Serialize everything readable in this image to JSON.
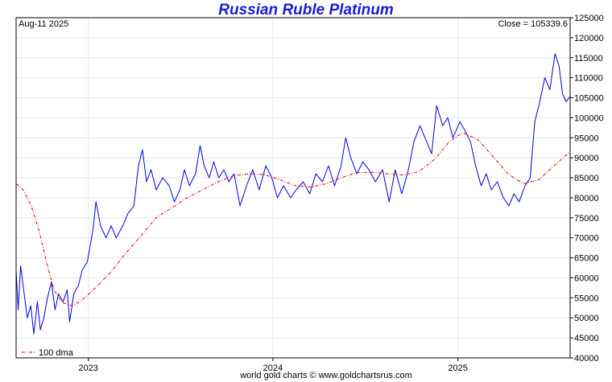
{
  "chart_data": {
    "type": "line",
    "title": "Russian Ruble Platinum",
    "date_label": "Aug-11  2025",
    "close_label": "Close = 105339.6",
    "footer": "world gold charts © www.goldchartsrus.com",
    "legend": [
      {
        "label": "100 dma",
        "color": "#e00000",
        "style": "dash-dot"
      }
    ],
    "legend_placement": "bottom-left",
    "grid": true,
    "ylim": [
      40000,
      125000
    ],
    "yticks": [
      40000,
      45000,
      50000,
      55000,
      60000,
      65000,
      70000,
      75000,
      80000,
      85000,
      90000,
      95000,
      100000,
      105000,
      110000,
      115000,
      120000,
      125000
    ],
    "xlim": [
      "2022-08-11",
      "2025-08-11"
    ],
    "xticks": [
      {
        "label": "2023",
        "date": "2023-01-01"
      },
      {
        "label": "2024",
        "date": "2024-01-01"
      },
      {
        "label": "2025",
        "date": "2025-01-01"
      }
    ],
    "series": [
      {
        "name": "Platinum",
        "color": "#0000e0",
        "points": [
          [
            "2022-08-11",
            62000
          ],
          [
            "2022-08-15",
            52000
          ],
          [
            "2022-08-20",
            63000
          ],
          [
            "2022-08-26",
            57000
          ],
          [
            "2022-09-02",
            50000
          ],
          [
            "2022-09-09",
            53000
          ],
          [
            "2022-09-15",
            46000
          ],
          [
            "2022-09-22",
            54000
          ],
          [
            "2022-09-28",
            47000
          ],
          [
            "2022-10-05",
            50000
          ],
          [
            "2022-10-12",
            55000
          ],
          [
            "2022-10-20",
            59000
          ],
          [
            "2022-10-27",
            52000
          ],
          [
            "2022-11-03",
            56000
          ],
          [
            "2022-11-12",
            54000
          ],
          [
            "2022-11-20",
            57000
          ],
          [
            "2022-11-25",
            49000
          ],
          [
            "2022-12-03",
            56000
          ],
          [
            "2022-12-12",
            58000
          ],
          [
            "2022-12-20",
            62000
          ],
          [
            "2022-12-30",
            64000
          ],
          [
            "2023-01-10",
            72000
          ],
          [
            "2023-01-16",
            79000
          ],
          [
            "2023-01-25",
            73000
          ],
          [
            "2023-02-05",
            70000
          ],
          [
            "2023-02-15",
            73000
          ],
          [
            "2023-02-25",
            70000
          ],
          [
            "2023-03-10",
            73000
          ],
          [
            "2023-03-20",
            76000
          ],
          [
            "2023-04-01",
            78000
          ],
          [
            "2023-04-10",
            88000
          ],
          [
            "2023-04-18",
            92000
          ],
          [
            "2023-04-26",
            84000
          ],
          [
            "2023-05-05",
            87000
          ],
          [
            "2023-05-15",
            82000
          ],
          [
            "2023-05-28",
            85000
          ],
          [
            "2023-06-10",
            83000
          ],
          [
            "2023-06-20",
            79000
          ],
          [
            "2023-07-01",
            82000
          ],
          [
            "2023-07-10",
            87000
          ],
          [
            "2023-07-20",
            83000
          ],
          [
            "2023-08-01",
            86000
          ],
          [
            "2023-08-10",
            93000
          ],
          [
            "2023-08-18",
            88000
          ],
          [
            "2023-08-28",
            85000
          ],
          [
            "2023-09-06",
            89000
          ],
          [
            "2023-09-16",
            85000
          ],
          [
            "2023-09-26",
            87000
          ],
          [
            "2023-10-06",
            84000
          ],
          [
            "2023-10-16",
            86000
          ],
          [
            "2023-10-28",
            78000
          ],
          [
            "2023-11-10",
            83000
          ],
          [
            "2023-11-22",
            87000
          ],
          [
            "2023-12-05",
            82000
          ],
          [
            "2023-12-18",
            88000
          ],
          [
            "2023-12-30",
            85000
          ],
          [
            "2024-01-10",
            80000
          ],
          [
            "2024-01-22",
            83000
          ],
          [
            "2024-02-05",
            80000
          ],
          [
            "2024-02-16",
            82000
          ],
          [
            "2024-03-01",
            84000
          ],
          [
            "2024-03-14",
            81000
          ],
          [
            "2024-03-26",
            86000
          ],
          [
            "2024-04-08",
            84000
          ],
          [
            "2024-04-20",
            88000
          ],
          [
            "2024-05-02",
            83000
          ],
          [
            "2024-05-15",
            88000
          ],
          [
            "2024-05-24",
            95000
          ],
          [
            "2024-06-03",
            90000
          ],
          [
            "2024-06-15",
            86000
          ],
          [
            "2024-06-27",
            89000
          ],
          [
            "2024-07-09",
            87000
          ],
          [
            "2024-07-22",
            84000
          ],
          [
            "2024-08-05",
            87000
          ],
          [
            "2024-08-18",
            79000
          ],
          [
            "2024-08-30",
            87000
          ],
          [
            "2024-09-12",
            81000
          ],
          [
            "2024-09-25",
            87000
          ],
          [
            "2024-10-06",
            94000
          ],
          [
            "2024-10-18",
            98000
          ],
          [
            "2024-10-28",
            95000
          ],
          [
            "2024-11-10",
            91000
          ],
          [
            "2024-11-20",
            103000
          ],
          [
            "2024-12-02",
            98000
          ],
          [
            "2024-12-12",
            100000
          ],
          [
            "2024-12-22",
            95000
          ],
          [
            "2025-01-05",
            99000
          ],
          [
            "2025-01-14",
            97000
          ],
          [
            "2025-01-26",
            94000
          ],
          [
            "2025-02-05",
            88000
          ],
          [
            "2025-02-16",
            83000
          ],
          [
            "2025-02-26",
            86000
          ],
          [
            "2025-03-08",
            82000
          ],
          [
            "2025-03-20",
            84000
          ],
          [
            "2025-04-01",
            80000
          ],
          [
            "2025-04-12",
            78000
          ],
          [
            "2025-04-22",
            81000
          ],
          [
            "2025-05-02",
            79000
          ],
          [
            "2025-05-14",
            83000
          ],
          [
            "2025-05-24",
            85000
          ],
          [
            "2025-06-02",
            99000
          ],
          [
            "2025-06-12",
            104000
          ],
          [
            "2025-06-22",
            110000
          ],
          [
            "2025-07-02",
            107000
          ],
          [
            "2025-07-12",
            116000
          ],
          [
            "2025-07-20",
            113000
          ],
          [
            "2025-07-27",
            106000
          ],
          [
            "2025-08-03",
            104000
          ],
          [
            "2025-08-11",
            105339.6
          ]
        ]
      },
      {
        "name": "100 dma",
        "color": "#e00000",
        "points": [
          [
            "2022-08-11",
            83500
          ],
          [
            "2022-08-25",
            82000
          ],
          [
            "2022-09-10",
            78000
          ],
          [
            "2022-09-25",
            72000
          ],
          [
            "2022-10-10",
            64000
          ],
          [
            "2022-10-25",
            57000
          ],
          [
            "2022-11-10",
            53800
          ],
          [
            "2022-12-01",
            53000
          ],
          [
            "2022-12-20",
            54500
          ],
          [
            "2023-01-15",
            57500
          ],
          [
            "2023-02-15",
            61500
          ],
          [
            "2023-03-15",
            66000
          ],
          [
            "2023-04-15",
            70500
          ],
          [
            "2023-05-15",
            75000
          ],
          [
            "2023-06-15",
            77500
          ],
          [
            "2023-07-15",
            80000
          ],
          [
            "2023-08-15",
            82000
          ],
          [
            "2023-09-15",
            84000
          ],
          [
            "2023-10-15",
            85500
          ],
          [
            "2023-11-15",
            86000
          ],
          [
            "2023-12-15",
            85800
          ],
          [
            "2024-01-15",
            84500
          ],
          [
            "2024-02-15",
            83000
          ],
          [
            "2024-03-15",
            82700
          ],
          [
            "2024-04-15",
            83500
          ],
          [
            "2024-05-15",
            85000
          ],
          [
            "2024-06-15",
            86300
          ],
          [
            "2024-07-15",
            86400
          ],
          [
            "2024-08-15",
            86000
          ],
          [
            "2024-09-15",
            85700
          ],
          [
            "2024-10-15",
            86500
          ],
          [
            "2024-11-15",
            89500
          ],
          [
            "2024-12-15",
            94000
          ],
          [
            "2025-01-10",
            96300
          ],
          [
            "2025-02-10",
            94500
          ],
          [
            "2025-03-10",
            90500
          ],
          [
            "2025-04-10",
            86000
          ],
          [
            "2025-05-10",
            83500
          ],
          [
            "2025-06-10",
            84500
          ],
          [
            "2025-07-10",
            88000
          ],
          [
            "2025-08-11",
            91500
          ]
        ]
      }
    ]
  }
}
